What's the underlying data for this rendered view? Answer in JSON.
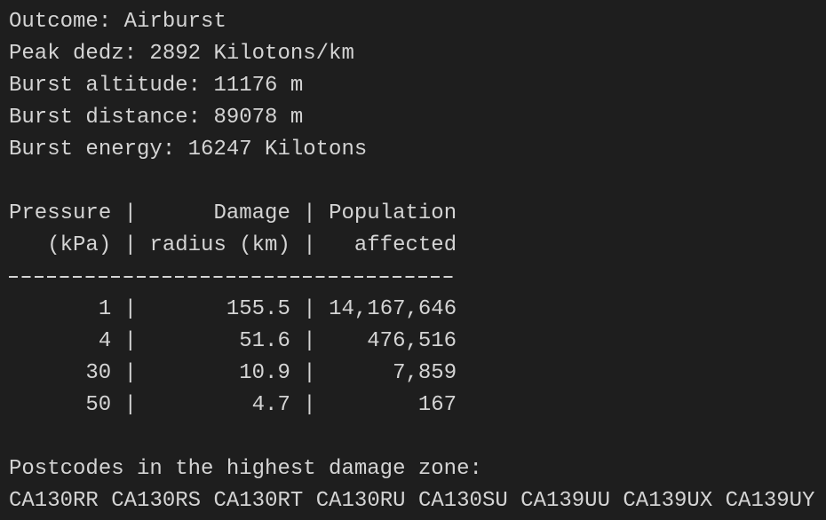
{
  "summary": [
    "Outcome: Airburst",
    "Peak dedz: 2892 Kilotons/km",
    "Burst altitude: 11176 m",
    "Burst distance: 89078 m",
    "Burst energy: 16247 Kilotons"
  ],
  "table": {
    "header": [
      [
        "Pressure",
        "Damage",
        "Population"
      ],
      [
        "(kPa)",
        "radius (km)",
        "affected"
      ]
    ],
    "rows": [
      [
        "1",
        "155.5",
        "14,167,646"
      ],
      [
        "4",
        "51.6",
        "476,516"
      ],
      [
        "30",
        "10.9",
        "7,859"
      ],
      [
        "50",
        "4.7",
        "167"
      ]
    ]
  },
  "postcodes": {
    "heading": "Postcodes in the highest damage zone:",
    "codes": [
      "CA130RR",
      "CA130RS",
      "CA130RT",
      "CA130RU",
      "CA130SU",
      "CA139UU",
      "CA139UX",
      "CA139UY"
    ]
  }
}
